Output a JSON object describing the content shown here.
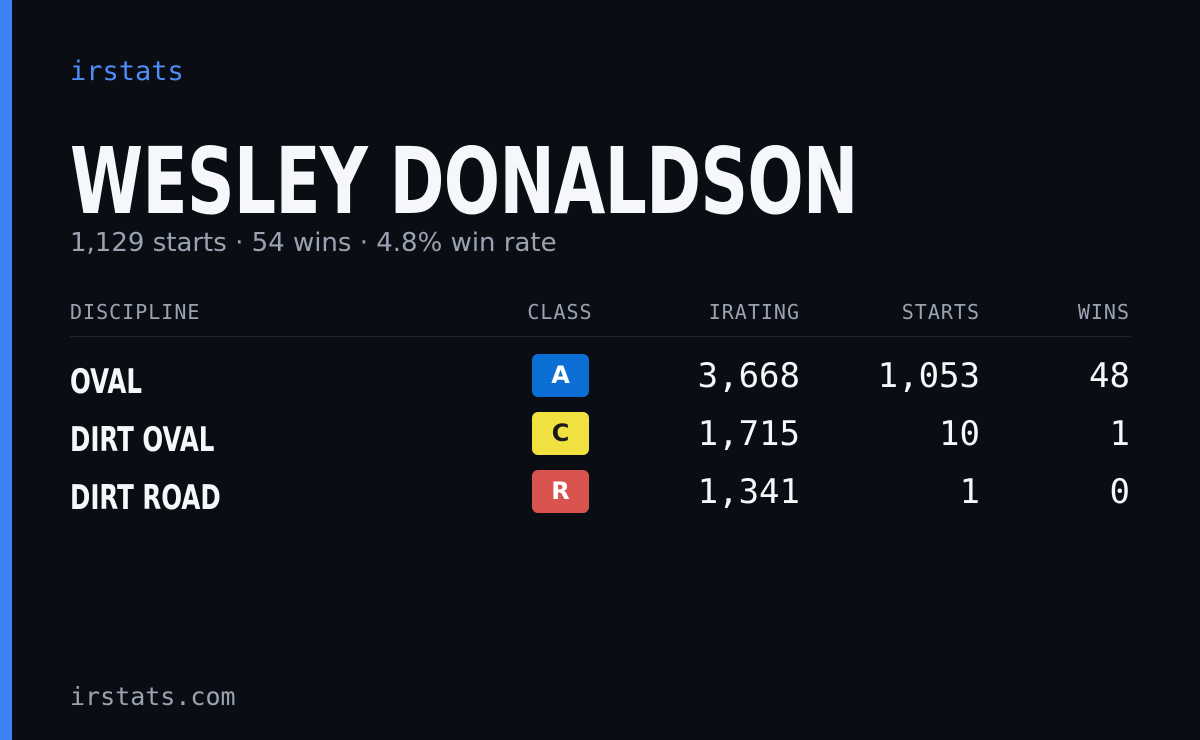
{
  "brand": "irstats",
  "driver": {
    "name": "WESLEY DONALDSON",
    "summary": "1,129 starts · 54 wins · 4.8% win rate"
  },
  "table": {
    "headers": [
      "DISCIPLINE",
      "CLASS",
      "IRATING",
      "STARTS",
      "WINS"
    ],
    "rows": [
      {
        "discipline": "OVAL",
        "class": "A",
        "class_color": "#0b6fd6",
        "class_text_color": "#ffffff",
        "irating": "3,668",
        "starts": "1,053",
        "wins": "48"
      },
      {
        "discipline": "DIRT OVAL",
        "class": "C",
        "class_color": "#f0e040",
        "class_text_color": "#1a1a1a",
        "irating": "1,715",
        "starts": "10",
        "wins": "1"
      },
      {
        "discipline": "DIRT ROAD",
        "class": "R",
        "class_color": "#d9534f",
        "class_text_color": "#ffffff",
        "irating": "1,341",
        "starts": "1",
        "wins": "0"
      }
    ]
  },
  "footer": "irstats.com"
}
